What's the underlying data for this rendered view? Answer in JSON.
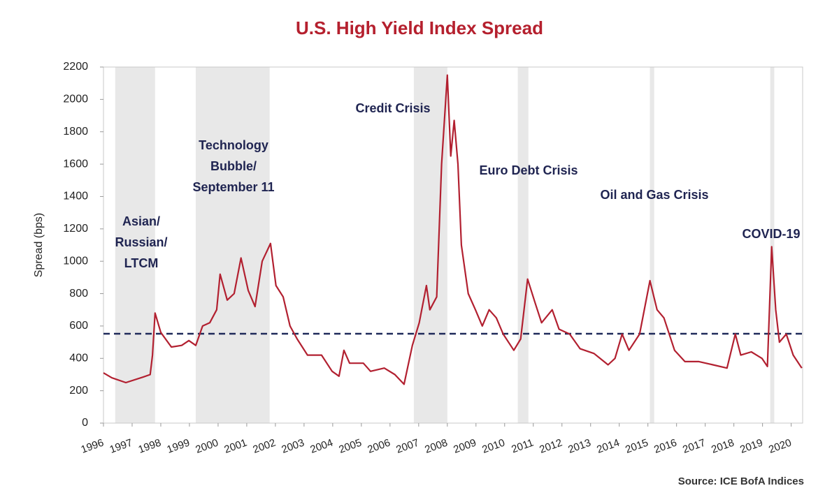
{
  "chart_data": {
    "type": "line",
    "title": "U.S. High Yield Index Spread",
    "y_label": "Spread (bps)",
    "source": "Source: ICE BofA Indices",
    "series": [
      {
        "name": "U.S. High Yield Index Spread",
        "color": "#b22030",
        "x": [
          1996.0,
          1996.29,
          1996.78,
          1997.39,
          1997.63,
          1997.71,
          1997.8,
          1998.0,
          1998.37,
          1998.73,
          1998.98,
          1999.22,
          1999.46,
          1999.71,
          1999.95,
          2000.07,
          2000.32,
          2000.56,
          2000.8,
          2001.05,
          2001.29,
          2001.54,
          2001.83,
          2002.02,
          2002.27,
          2002.51,
          2002.76,
          2003.12,
          2003.61,
          2003.98,
          2004.22,
          2004.39,
          2004.59,
          2005.07,
          2005.32,
          2005.8,
          2006.17,
          2006.49,
          2006.78,
          2007.02,
          2007.27,
          2007.39,
          2007.63,
          2007.8,
          2008.0,
          2008.12,
          2008.24,
          2008.37,
          2008.49,
          2008.73,
          2008.98,
          2009.22,
          2009.46,
          2009.71,
          2009.95,
          2010.32,
          2010.56,
          2010.8,
          2011.05,
          2011.29,
          2011.66,
          2011.9,
          2012.27,
          2012.63,
          2013.12,
          2013.61,
          2013.85,
          2014.1,
          2014.34,
          2014.71,
          2015.07,
          2015.32,
          2015.56,
          2015.93,
          2016.29,
          2016.78,
          2017.27,
          2017.76,
          2018.05,
          2018.24,
          2018.61,
          2018.98,
          2019.17,
          2019.32,
          2019.46,
          2019.59,
          2019.83,
          2020.07,
          2020.37
        ],
        "values": [
          310,
          280,
          250,
          285,
          300,
          420,
          680,
          560,
          470,
          480,
          510,
          480,
          600,
          620,
          700,
          920,
          760,
          800,
          1020,
          820,
          720,
          1000,
          1110,
          850,
          780,
          600,
          520,
          420,
          420,
          320,
          290,
          450,
          370,
          370,
          320,
          340,
          300,
          240,
          480,
          620,
          850,
          700,
          780,
          1600,
          2150,
          1650,
          1870,
          1600,
          1100,
          800,
          700,
          600,
          700,
          650,
          550,
          450,
          520,
          890,
          750,
          620,
          700,
          580,
          550,
          460,
          430,
          360,
          400,
          550,
          450,
          550,
          880,
          700,
          650,
          450,
          380,
          380,
          360,
          340,
          550,
          420,
          440,
          400,
          350,
          1090,
          700,
          500,
          550,
          420,
          340
        ]
      }
    ],
    "reference_line": {
      "value": 552,
      "color": "#1f2a5a",
      "dashed": true
    },
    "shaded_periods": [
      [
        1996.41,
        1997.8
      ],
      [
        1999.22,
        2001.8
      ],
      [
        2006.83,
        2008.0
      ],
      [
        2010.46,
        2010.83
      ],
      [
        2015.07,
        2015.22
      ],
      [
        2019.27,
        2019.41
      ]
    ],
    "shade_color": "#e8e8e8",
    "annotations": [
      {
        "lines": [
          "Asian/",
          "Russian/",
          "LTCM"
        ]
      },
      {
        "lines": [
          "Technology",
          "Bubble/",
          "September 11"
        ]
      },
      {
        "lines": [
          "Credit Crisis"
        ]
      },
      {
        "lines": [
          "Euro Debt Crisis"
        ]
      },
      {
        "lines": [
          "Oil and Gas Crisis"
        ]
      },
      {
        "lines": [
          "COVID-19"
        ]
      }
    ],
    "xlim": [
      1996,
      2020.4
    ],
    "xticks": [
      1996,
      1997,
      1998,
      1999,
      2000,
      2001,
      2002,
      2003,
      2004,
      2005,
      2006,
      2007,
      2008,
      2009,
      2010,
      2011,
      2012,
      2013,
      2014,
      2015,
      2016,
      2017,
      2018,
      2019,
      2020
    ],
    "ylim": [
      0,
      2200
    ],
    "yticks": [
      0,
      200,
      400,
      600,
      800,
      1000,
      1200,
      1400,
      1600,
      1800,
      2000,
      2200
    ],
    "grid": false
  }
}
